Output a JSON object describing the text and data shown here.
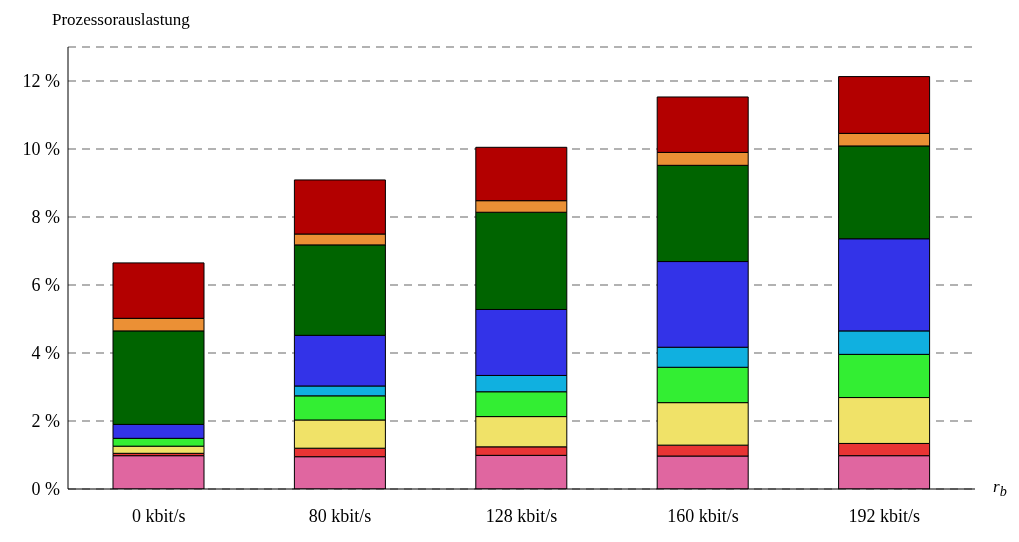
{
  "chart_data": {
    "type": "bar",
    "stacked": true,
    "ylabel": "Prozessorauslastung",
    "xlabel": "r$_{b}$",
    "categories": [
      "0 kbit/s",
      "80 kbit/s",
      "128 kbit/s",
      "160 kbit/s",
      "192 kbit/s"
    ],
    "ylim": [
      0,
      13
    ],
    "yticks": [
      {
        "value": 0,
        "label": "0 %"
      },
      {
        "value": 2,
        "label": "2 %"
      },
      {
        "value": 4,
        "label": "4 %"
      },
      {
        "value": 6,
        "label": "6 %"
      },
      {
        "value": 8,
        "label": "8 %"
      },
      {
        "value": 10,
        "label": "10 %"
      },
      {
        "value": 12,
        "label": "12 %"
      }
    ],
    "grid": "y",
    "line_style": "dashed",
    "legend": false,
    "series": [
      {
        "color": "#e066a0",
        "values": [
          0.98,
          0.95,
          0.99,
          0.97,
          0.98
        ]
      },
      {
        "color": "#e83434",
        "values": [
          0.07,
          0.25,
          0.25,
          0.32,
          0.36
        ]
      },
      {
        "color": "#f0e268",
        "values": [
          0.21,
          0.83,
          0.89,
          1.25,
          1.35
        ]
      },
      {
        "color": "#33ee33",
        "values": [
          0.23,
          0.71,
          0.73,
          1.04,
          1.27
        ]
      },
      {
        "color": "#10b0e0",
        "values": [
          0,
          0.29,
          0.48,
          0.59,
          0.69
        ]
      },
      {
        "color": "#3333e8",
        "values": [
          0.41,
          1.49,
          1.94,
          2.52,
          2.71
        ]
      },
      {
        "color": "#006400",
        "values": [
          2.75,
          2.66,
          2.86,
          2.83,
          2.73
        ]
      },
      {
        "color": "#eb9035",
        "values": [
          0.37,
          0.32,
          0.34,
          0.38,
          0.37
        ]
      },
      {
        "color": "#b30000",
        "values": [
          1.63,
          1.59,
          1.57,
          1.63,
          1.67
        ]
      }
    ]
  }
}
